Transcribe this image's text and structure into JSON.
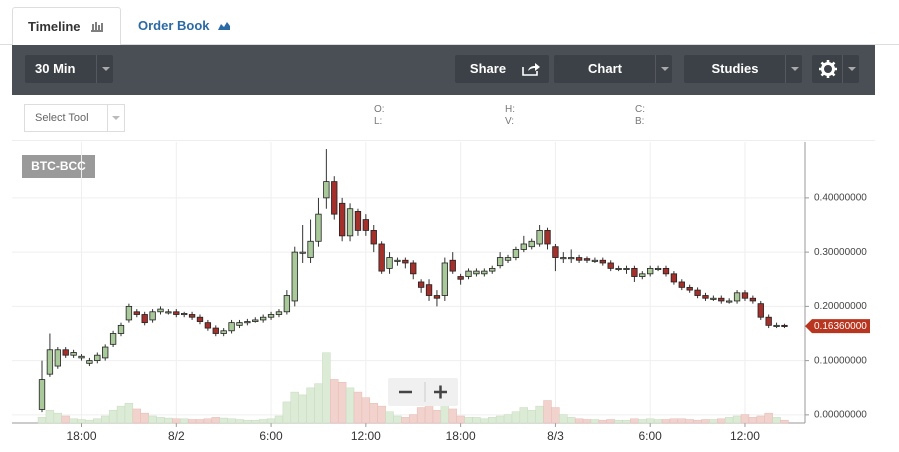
{
  "ui": {
    "tabs": [
      "Timeline",
      "Order Book"
    ],
    "interval": "30 Min",
    "share": "Share",
    "chart": "Chart",
    "studies": "Studies",
    "select_tool": "Select Tool",
    "ohlc_labels": [
      "O:",
      "L:",
      "H:",
      "V:",
      "C:",
      "B:"
    ]
  },
  "chart_data": {
    "type": "candlestick",
    "title": "BTC-BCC",
    "open": [
      0.01,
      0.075,
      0.09,
      0.12,
      0.11,
      0.105,
      0.095,
      0.1,
      0.105,
      0.13,
      0.15,
      0.175,
      0.19,
      0.185,
      0.175,
      0.19,
      0.19,
      0.19,
      0.185,
      0.185,
      0.18,
      0.17,
      0.16,
      0.15,
      0.155,
      0.165,
      0.17,
      0.172,
      0.175,
      0.18,
      0.185,
      0.19,
      0.21,
      0.3,
      0.29,
      0.32,
      0.4,
      0.43,
      0.39,
      0.33,
      0.375,
      0.36,
      0.34,
      0.315,
      0.27,
      0.285,
      0.285,
      0.28,
      0.245,
      0.24,
      0.22,
      0.22,
      0.285,
      0.255,
      0.255,
      0.26,
      0.26,
      0.265,
      0.275,
      0.285,
      0.29,
      0.305,
      0.31,
      0.315,
      0.34,
      0.31,
      0.29,
      0.29,
      0.29,
      0.288,
      0.285,
      0.285,
      0.28,
      0.27,
      0.27,
      0.27,
      0.255,
      0.26,
      0.27,
      0.27,
      0.26,
      0.245,
      0.235,
      0.23,
      0.22,
      0.215,
      0.215,
      0.21,
      0.21,
      0.225,
      0.215,
      0.205,
      0.18,
      0.165,
      0.165
    ],
    "high": [
      0.1,
      0.15,
      0.125,
      0.125,
      0.12,
      0.112,
      0.105,
      0.115,
      0.13,
      0.155,
      0.17,
      0.205,
      0.195,
      0.19,
      0.195,
      0.2,
      0.195,
      0.195,
      0.19,
      0.19,
      0.185,
      0.175,
      0.165,
      0.16,
      0.175,
      0.175,
      0.177,
      0.18,
      0.185,
      0.19,
      0.195,
      0.23,
      0.31,
      0.35,
      0.36,
      0.4,
      0.49,
      0.44,
      0.4,
      0.39,
      0.38,
      0.37,
      0.35,
      0.32,
      0.3,
      0.29,
      0.29,
      0.285,
      0.25,
      0.25,
      0.23,
      0.29,
      0.3,
      0.26,
      0.27,
      0.27,
      0.27,
      0.275,
      0.3,
      0.295,
      0.31,
      0.33,
      0.325,
      0.35,
      0.345,
      0.315,
      0.3,
      0.305,
      0.295,
      0.292,
      0.29,
      0.29,
      0.285,
      0.275,
      0.275,
      0.275,
      0.265,
      0.275,
      0.275,
      0.275,
      0.265,
      0.25,
      0.24,
      0.235,
      0.225,
      0.22,
      0.22,
      0.215,
      0.23,
      0.23,
      0.22,
      0.21,
      0.185,
      0.17,
      0.168
    ],
    "low": [
      0.005,
      0.07,
      0.085,
      0.105,
      0.105,
      0.1,
      0.09,
      0.095,
      0.1,
      0.125,
      0.145,
      0.17,
      0.18,
      0.165,
      0.17,
      0.185,
      0.185,
      0.18,
      0.18,
      0.175,
      0.167,
      0.155,
      0.145,
      0.145,
      0.15,
      0.16,
      0.165,
      0.17,
      0.17,
      0.175,
      0.18,
      0.185,
      0.2,
      0.28,
      0.28,
      0.31,
      0.38,
      0.36,
      0.32,
      0.32,
      0.33,
      0.33,
      0.3,
      0.26,
      0.26,
      0.275,
      0.27,
      0.25,
      0.225,
      0.21,
      0.2,
      0.21,
      0.26,
      0.24,
      0.25,
      0.255,
      0.255,
      0.26,
      0.27,
      0.28,
      0.285,
      0.3,
      0.305,
      0.31,
      0.305,
      0.265,
      0.28,
      0.28,
      0.28,
      0.28,
      0.28,
      0.275,
      0.265,
      0.265,
      0.26,
      0.245,
      0.25,
      0.255,
      0.265,
      0.255,
      0.24,
      0.23,
      0.225,
      0.215,
      0.21,
      0.21,
      0.205,
      0.205,
      0.205,
      0.21,
      0.205,
      0.175,
      0.16,
      0.16,
      0.16
    ],
    "close": [
      0.065,
      0.12,
      0.12,
      0.11,
      0.115,
      0.108,
      0.1,
      0.11,
      0.125,
      0.15,
      0.165,
      0.2,
      0.185,
      0.17,
      0.19,
      0.195,
      0.19,
      0.185,
      0.187,
      0.18,
      0.172,
      0.16,
      0.15,
      0.155,
      0.17,
      0.17,
      0.172,
      0.175,
      0.18,
      0.185,
      0.19,
      0.22,
      0.3,
      0.3,
      0.32,
      0.37,
      0.43,
      0.37,
      0.33,
      0.38,
      0.34,
      0.34,
      0.315,
      0.265,
      0.29,
      0.285,
      0.28,
      0.26,
      0.235,
      0.22,
      0.215,
      0.28,
      0.265,
      0.25,
      0.265,
      0.265,
      0.265,
      0.27,
      0.29,
      0.29,
      0.305,
      0.315,
      0.32,
      0.34,
      0.315,
      0.29,
      0.29,
      0.29,
      0.285,
      0.285,
      0.285,
      0.28,
      0.27,
      0.27,
      0.27,
      0.255,
      0.26,
      0.27,
      0.27,
      0.26,
      0.245,
      0.235,
      0.23,
      0.22,
      0.215,
      0.215,
      0.21,
      0.21,
      0.225,
      0.215,
      0.21,
      0.18,
      0.165,
      0.165,
      0.1636
    ],
    "volume": [
      8,
      18,
      14,
      10,
      6,
      5,
      4,
      6,
      10,
      18,
      24,
      28,
      20,
      14,
      10,
      8,
      7,
      6,
      6,
      5,
      5,
      6,
      8,
      7,
      6,
      5,
      4,
      4,
      5,
      6,
      10,
      30,
      44,
      40,
      50,
      56,
      100,
      62,
      58,
      50,
      44,
      36,
      28,
      24,
      16,
      10,
      8,
      12,
      22,
      26,
      18,
      28,
      20,
      10,
      8,
      8,
      6,
      8,
      10,
      12,
      16,
      22,
      18,
      24,
      32,
      22,
      12,
      8,
      6,
      5,
      5,
      4,
      5,
      4,
      4,
      6,
      5,
      6,
      5,
      5,
      6,
      6,
      5,
      4,
      5,
      5,
      6,
      8,
      10,
      12,
      8,
      10,
      14,
      8,
      4
    ],
    "xlim": [
      -3.8,
      96.6
    ],
    "xticks": [
      {
        "value": 5,
        "label": "18:00"
      },
      {
        "value": 17,
        "label": "8/2"
      },
      {
        "value": 29,
        "label": "6:00"
      },
      {
        "value": 41,
        "label": "12:00"
      },
      {
        "value": 53,
        "label": "18:00"
      },
      {
        "value": 65,
        "label": "8/3"
      },
      {
        "value": 77,
        "label": "6:00"
      },
      {
        "value": 89,
        "label": "12:00"
      }
    ],
    "ylim": [
      -0.015,
      0.503
    ],
    "yticks": [
      {
        "value": 0,
        "label": "0.00000000"
      },
      {
        "value": 0.1,
        "label": "0.10000000"
      },
      {
        "value": 0.2,
        "label": "0.20000000"
      },
      {
        "value": 0.3,
        "label": "0.30000000"
      },
      {
        "value": 0.4,
        "label": "0.40000000"
      }
    ],
    "y2lim": [
      0,
      400
    ],
    "last_price": {
      "value": 0.1636,
      "label": "0.16360000"
    },
    "up_color": "#a9c99a",
    "down_color": "#a3302a",
    "up_volume_color": "#dcebd5",
    "down_volume_color": "#f2d2cd",
    "grid": true
  }
}
